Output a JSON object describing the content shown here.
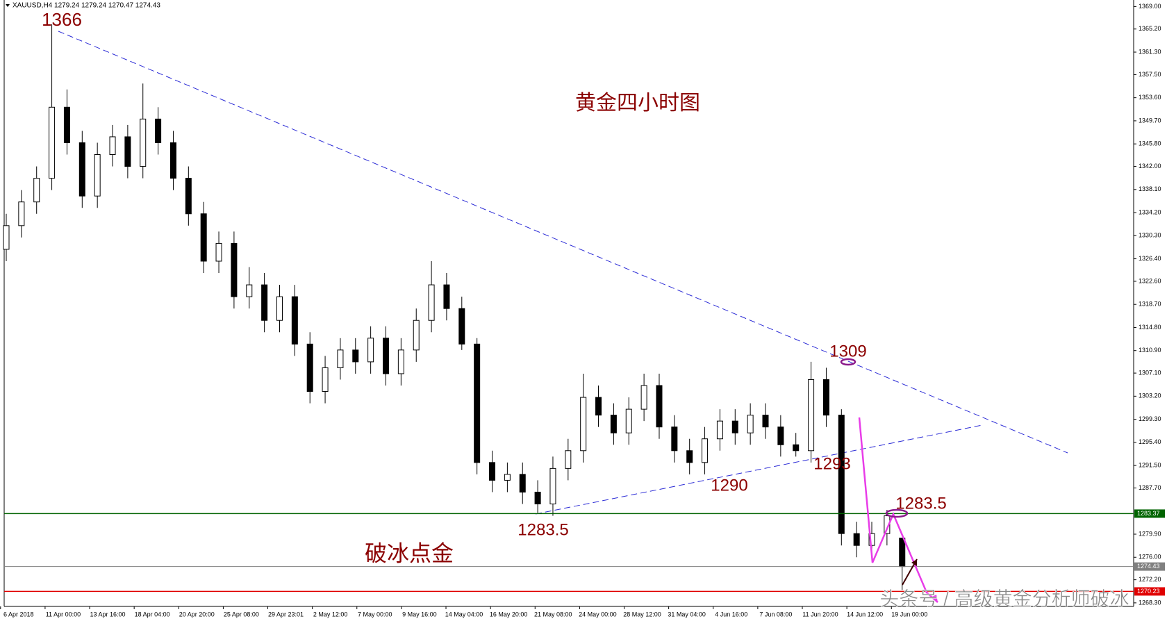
{
  "chart_data": {
    "type": "candlestick",
    "header": "XAUUSD,H4  1279.24 1279.24 1270.47 1274.43",
    "categories": [
      "6 Apr 2018",
      "11 Apr 00:00",
      "13 Apr 16:00",
      "18 Apr 04:00",
      "20 Apr 20:00",
      "25 Apr 08:00",
      "29 Apr 23:01",
      "2 May 12:00",
      "7 May 00:00",
      "9 May 16:00",
      "14 May 04:00",
      "16 May 20:00",
      "21 May 08:00",
      "24 May 00:00",
      "28 May 12:00",
      "31 May 04:00",
      "4 Jun 16:00",
      "7 Jun 08:00",
      "11 Jun 20:00",
      "14 Jun 12:00",
      "19 Jun 00:00"
    ],
    "open": [
      1328,
      1332,
      1336,
      1340,
      1352,
      1346,
      1337,
      1344,
      1347,
      1342,
      1350,
      1346,
      1340,
      1334,
      1326,
      1329,
      1320,
      1322,
      1316,
      1320,
      1312,
      1304,
      1308,
      1311,
      1309,
      1313,
      1307,
      1311,
      1316,
      1322,
      1318,
      1312,
      1292,
      1289,
      1290,
      1287,
      1285,
      1291,
      1294,
      1303,
      1300,
      1297,
      1301,
      1305,
      1298,
      1294,
      1292,
      1296,
      1299,
      1297,
      1300,
      1298,
      1295,
      1294,
      1306,
      1300,
      1280,
      1278,
      1280,
      1279.24
    ],
    "high": [
      1334,
      1338,
      1342,
      1366,
      1355,
      1348,
      1346,
      1349,
      1349,
      1356,
      1352,
      1348,
      1342,
      1336,
      1331,
      1331,
      1325,
      1324,
      1322,
      1322,
      1314,
      1310,
      1313,
      1313,
      1315,
      1315,
      1313,
      1318,
      1326,
      1324,
      1320,
      1313,
      1294,
      1292,
      1292,
      1289,
      1293,
      1296,
      1307,
      1305,
      1302,
      1303,
      1307,
      1307,
      1300,
      1296,
      1298,
      1301,
      1301,
      1302,
      1302,
      1300,
      1297,
      1309,
      1308,
      1301,
      1282,
      1282,
      1284,
      1279.24
    ],
    "low": [
      1326,
      1330,
      1334,
      1338,
      1344,
      1335,
      1335,
      1342,
      1340,
      1340,
      1344,
      1338,
      1332,
      1324,
      1324,
      1318,
      1318,
      1314,
      1314,
      1310,
      1302,
      1302,
      1306,
      1307,
      1307,
      1305,
      1305,
      1309,
      1314,
      1316,
      1311,
      1290,
      1287,
      1287,
      1285,
      1283.5,
      1283,
      1289,
      1292,
      1298,
      1295,
      1295,
      1299,
      1296,
      1292,
      1290,
      1290,
      1294,
      1295,
      1295,
      1296,
      1293,
      1293,
      1292,
      1298,
      1278,
      1276,
      1276,
      1278,
      1270.47
    ],
    "close": [
      1332,
      1336,
      1340,
      1352,
      1346,
      1337,
      1344,
      1347,
      1342,
      1350,
      1346,
      1340,
      1334,
      1326,
      1329,
      1320,
      1322,
      1316,
      1320,
      1312,
      1304,
      1308,
      1311,
      1309,
      1313,
      1307,
      1311,
      1316,
      1322,
      1318,
      1312,
      1292,
      1289,
      1290,
      1287,
      1285,
      1291,
      1294,
      1303,
      1300,
      1297,
      1301,
      1305,
      1298,
      1294,
      1292,
      1296,
      1299,
      1297,
      1300,
      1298,
      1295,
      1294,
      1306,
      1300,
      1280,
      1278,
      1280,
      1283,
      1274.43
    ],
    "ylim": [
      1267.7,
      1370.1
    ],
    "yticks": [
      {
        "value": 1369.0,
        "label": "1369.00"
      },
      {
        "value": 1365.2,
        "label": "1365.20"
      },
      {
        "value": 1361.3,
        "label": "1361.30"
      },
      {
        "value": 1357.5,
        "label": "1357.50"
      },
      {
        "value": 1353.6,
        "label": "1353.60"
      },
      {
        "value": 1349.7,
        "label": "1349.70"
      },
      {
        "value": 1345.8,
        "label": "1345.80"
      },
      {
        "value": 1342.0,
        "label": "1342.00"
      },
      {
        "value": 1338.1,
        "label": "1338.10"
      },
      {
        "value": 1334.2,
        "label": "1334.20"
      },
      {
        "value": 1330.3,
        "label": "1330.30"
      },
      {
        "value": 1326.4,
        "label": "1326.40"
      },
      {
        "value": 1322.6,
        "label": "1322.60"
      },
      {
        "value": 1318.7,
        "label": "1318.70"
      },
      {
        "value": 1314.8,
        "label": "1314.80"
      },
      {
        "value": 1310.9,
        "label": "1310.90"
      },
      {
        "value": 1307.1,
        "label": "1307.10"
      },
      {
        "value": 1303.2,
        "label": "1303.20"
      },
      {
        "value": 1299.3,
        "label": "1299.30"
      },
      {
        "value": 1295.4,
        "label": "1295.40"
      },
      {
        "value": 1291.5,
        "label": "1291.50"
      },
      {
        "value": 1287.7,
        "label": "1287.70"
      },
      {
        "value": 1279.9,
        "label": "1279.90"
      },
      {
        "value": 1276.0,
        "label": "1276.00"
      },
      {
        "value": 1272.2,
        "label": "1272.20"
      },
      {
        "value": 1268.3,
        "label": "1268.30"
      }
    ],
    "levels": [
      {
        "value": 1283.37,
        "color": "#006400"
      },
      {
        "value": 1274.43,
        "color": "#808080"
      },
      {
        "value": 1270.23,
        "color": "#e00000"
      }
    ],
    "annotations": [
      "1366",
      "黄金四小时图",
      "1309",
      "1293",
      "1290",
      "1283.5",
      "1283.5",
      "破冰点金",
      "头条号 / 高级黄金分析师破冰"
    ]
  }
}
